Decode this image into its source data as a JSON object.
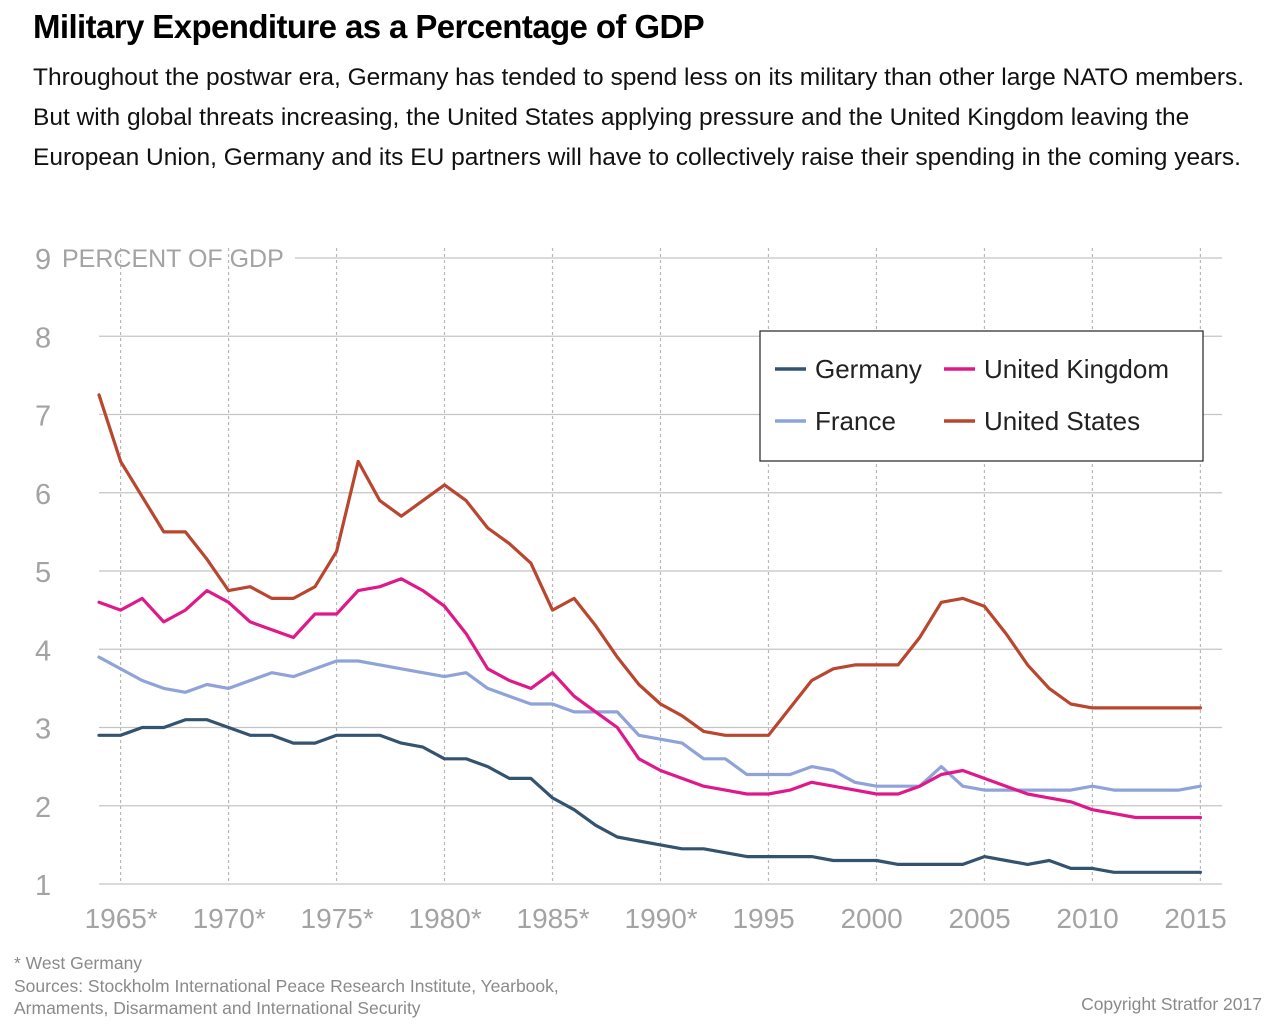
{
  "header": {
    "title": "Military Expenditure as a Percentage of GDP",
    "subtitle": "Throughout the postwar era, Germany has tended to spend less on its military than other large NATO members. But with global threats increasing, the United States applying pressure and the United Kingdom leaving the European Union, Germany and its EU partners will have to collectively raise their spending in the coming years."
  },
  "footer": {
    "note": "* West Germany",
    "sources_line1": "Sources: Stockholm International Peace Research Institute, Yearbook,",
    "sources_line2": "Armaments, Disarmament and International Security",
    "copyright": "Copyright Stratfor 2017"
  },
  "chart_data": {
    "type": "line",
    "title": "Military Expenditure as a Percentage of GDP",
    "ylabel": "PERCENT OF GDP",
    "xlim": [
      1964,
      2016
    ],
    "ylim": [
      1,
      9
    ],
    "y_ticks": [
      1,
      2,
      3,
      4,
      5,
      6,
      7,
      8,
      9
    ],
    "x_ticks": [
      {
        "year": 1965,
        "label": "1965*"
      },
      {
        "year": 1970,
        "label": "1970*"
      },
      {
        "year": 1975,
        "label": "1975*"
      },
      {
        "year": 1980,
        "label": "1980*"
      },
      {
        "year": 1985,
        "label": "1985*"
      },
      {
        "year": 1990,
        "label": "1990*"
      },
      {
        "year": 1995,
        "label": "1995"
      },
      {
        "year": 2000,
        "label": "2000"
      },
      {
        "year": 2005,
        "label": "2005"
      },
      {
        "year": 2010,
        "label": "2010"
      },
      {
        "year": 2015,
        "label": "2015"
      }
    ],
    "grid": true,
    "legend_position": "top-right",
    "series": [
      {
        "name": "Germany",
        "color": "#34536f",
        "x": [
          1964,
          1965,
          1966,
          1967,
          1968,
          1969,
          1970,
          1971,
          1972,
          1973,
          1974,
          1975,
          1976,
          1977,
          1978,
          1979,
          1980,
          1981,
          1982,
          1983,
          1984,
          1985,
          1986,
          1987,
          1988,
          1989,
          1990,
          1991,
          1992,
          1993,
          1994,
          1995,
          1996,
          1997,
          1998,
          1999,
          2000,
          2001,
          2002,
          2003,
          2004,
          2005,
          2006,
          2007,
          2008,
          2009,
          2010,
          2011,
          2012,
          2013,
          2014,
          2015
        ],
        "values": [
          2.9,
          2.9,
          3.0,
          3.0,
          3.1,
          3.1,
          3.0,
          2.9,
          2.9,
          2.8,
          2.8,
          2.9,
          2.9,
          2.9,
          2.8,
          2.75,
          2.6,
          2.6,
          2.5,
          2.35,
          2.35,
          2.1,
          1.95,
          1.75,
          1.6,
          1.55,
          1.5,
          1.45,
          1.45,
          1.4,
          1.35,
          1.35,
          1.35,
          1.35,
          1.3,
          1.3,
          1.3,
          1.25,
          1.25,
          1.25,
          1.25,
          1.35,
          1.3,
          1.25,
          1.3,
          1.2,
          1.2,
          1.15,
          1.15,
          1.15,
          1.15,
          1.15
        ]
      },
      {
        "name": "France",
        "color": "#8fa3d8",
        "x": [
          1964,
          1965,
          1966,
          1967,
          1968,
          1969,
          1970,
          1971,
          1972,
          1973,
          1974,
          1975,
          1976,
          1977,
          1978,
          1979,
          1980,
          1981,
          1982,
          1983,
          1984,
          1985,
          1986,
          1987,
          1988,
          1989,
          1990,
          1991,
          1992,
          1993,
          1994,
          1995,
          1996,
          1997,
          1998,
          1999,
          2000,
          2001,
          2002,
          2003,
          2004,
          2005,
          2006,
          2007,
          2008,
          2009,
          2010,
          2011,
          2012,
          2013,
          2014,
          2015
        ],
        "values": [
          3.9,
          3.75,
          3.6,
          3.5,
          3.45,
          3.55,
          3.5,
          3.6,
          3.7,
          3.65,
          3.75,
          3.85,
          3.85,
          3.8,
          3.75,
          3.7,
          3.65,
          3.7,
          3.5,
          3.4,
          3.3,
          3.3,
          3.2,
          3.2,
          3.2,
          2.9,
          2.85,
          2.8,
          2.6,
          2.6,
          2.4,
          2.4,
          2.4,
          2.5,
          2.45,
          2.3,
          2.25,
          2.25,
          2.25,
          2.5,
          2.25,
          2.2,
          2.2,
          2.2,
          2.2,
          2.2,
          2.25,
          2.2,
          2.2,
          2.2,
          2.2,
          2.25
        ]
      },
      {
        "name": "United Kingdom",
        "color": "#e0198a",
        "x": [
          1964,
          1965,
          1966,
          1967,
          1968,
          1969,
          1970,
          1971,
          1972,
          1973,
          1974,
          1975,
          1976,
          1977,
          1978,
          1979,
          1980,
          1981,
          1982,
          1983,
          1984,
          1985,
          1986,
          1987,
          1988,
          1989,
          1990,
          1991,
          1992,
          1993,
          1994,
          1995,
          1996,
          1997,
          1998,
          1999,
          2000,
          2001,
          2002,
          2003,
          2004,
          2005,
          2006,
          2007,
          2008,
          2009,
          2010,
          2011,
          2012,
          2013,
          2014,
          2015
        ],
        "values": [
          4.6,
          4.5,
          4.65,
          4.35,
          4.5,
          4.75,
          4.6,
          4.35,
          4.25,
          4.15,
          4.45,
          4.45,
          4.75,
          4.8,
          4.9,
          4.75,
          4.55,
          4.2,
          3.75,
          3.6,
          3.5,
          3.7,
          3.4,
          3.2,
          3.0,
          2.6,
          2.45,
          2.35,
          2.25,
          2.2,
          2.15,
          2.15,
          2.2,
          2.3,
          2.25,
          2.2,
          2.15,
          2.15,
          2.25,
          2.4,
          2.45,
          2.35,
          2.25,
          2.15,
          2.1,
          2.05,
          1.95,
          1.9,
          1.85,
          1.85,
          1.85,
          1.85
        ]
      },
      {
        "name": "United States",
        "color": "#b9462f",
        "x": [
          1964,
          1965,
          1966,
          1967,
          1968,
          1969,
          1970,
          1971,
          1972,
          1973,
          1974,
          1975,
          1976,
          1977,
          1978,
          1979,
          1980,
          1981,
          1982,
          1983,
          1984,
          1985,
          1986,
          1987,
          1988,
          1989,
          1990,
          1991,
          1992,
          1993,
          1994,
          1995,
          1996,
          1997,
          1998,
          1999,
          2000,
          2001,
          2002,
          2003,
          2004,
          2005,
          2006,
          2007,
          2008,
          2009,
          2010,
          2011,
          2012,
          2013,
          2014,
          2015
        ],
        "values": [
          7.25,
          6.4,
          5.95,
          5.5,
          5.5,
          5.15,
          4.75,
          4.8,
          4.65,
          4.65,
          4.8,
          5.25,
          6.4,
          5.9,
          5.7,
          5.9,
          6.1,
          5.9,
          5.55,
          5.35,
          5.1,
          4.5,
          4.65,
          4.3,
          3.9,
          3.55,
          3.3,
          3.15,
          2.95,
          2.9,
          2.9,
          2.9,
          3.25,
          3.6,
          3.75,
          3.8,
          3.8,
          3.8,
          4.15,
          4.6,
          4.65,
          4.55,
          4.2,
          3.8,
          3.5,
          3.3,
          3.25,
          3.25,
          3.25,
          3.25,
          3.25,
          3.25
        ]
      }
    ]
  }
}
